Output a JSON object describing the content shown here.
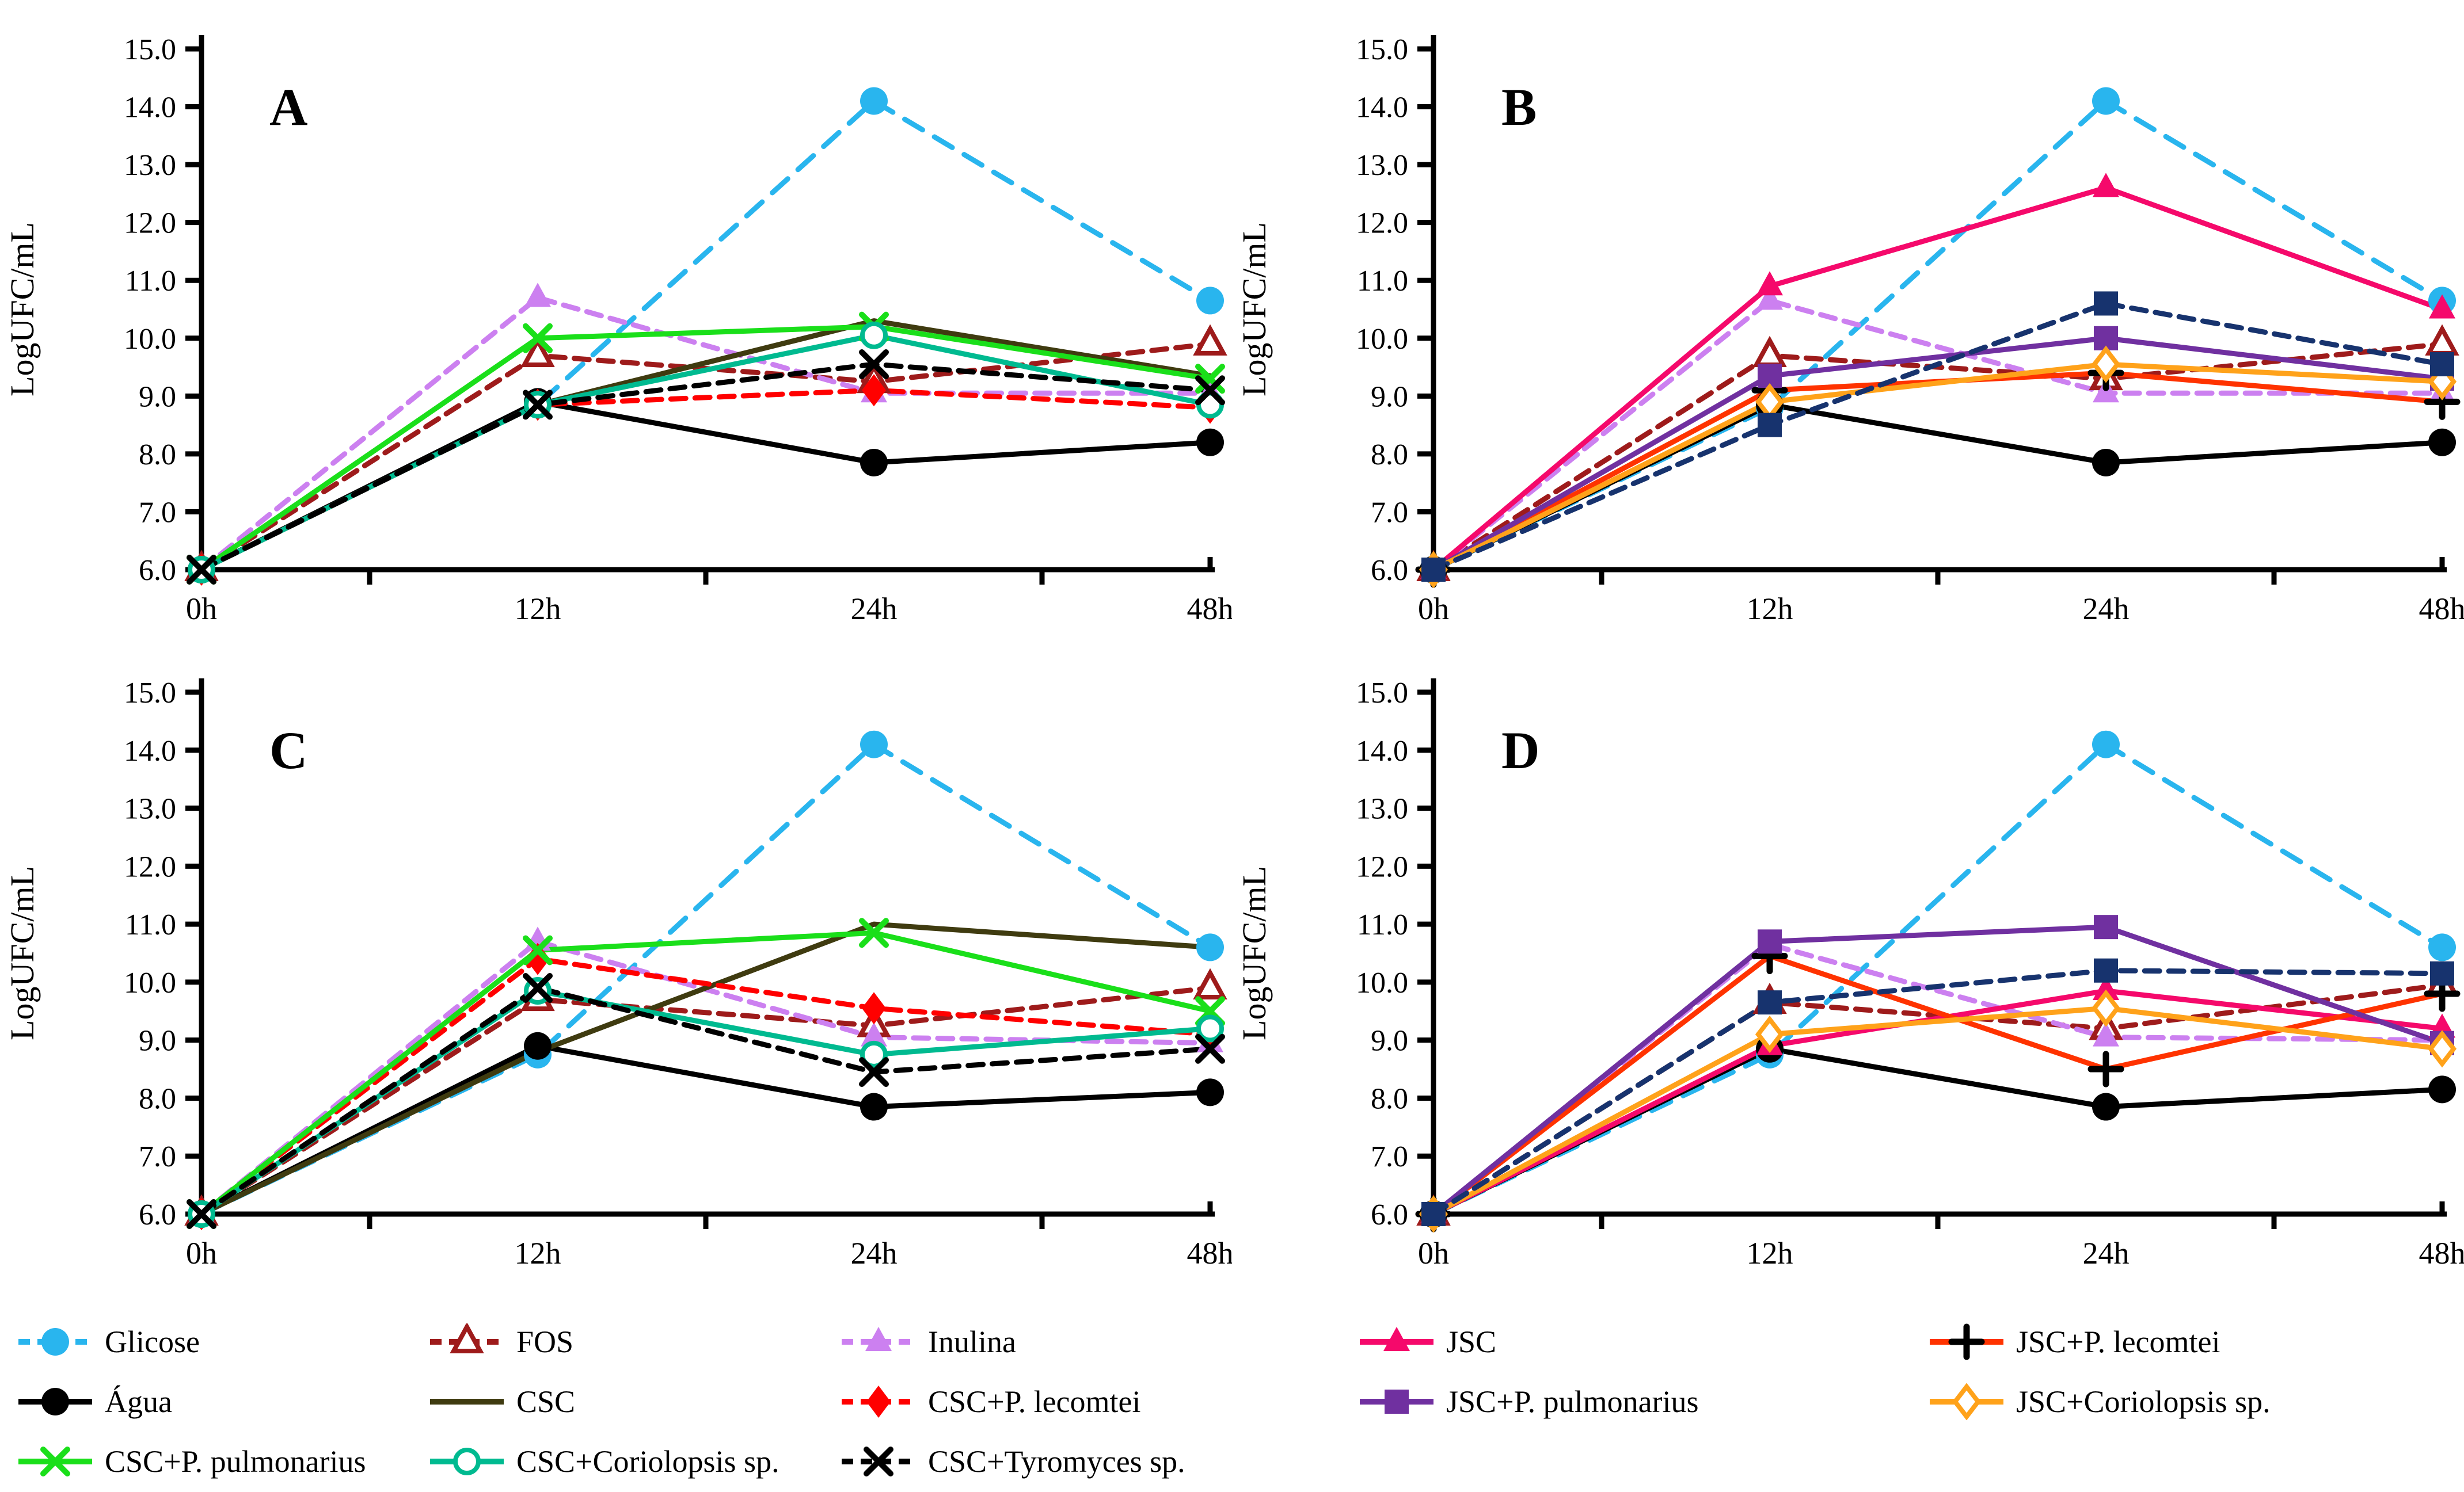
{
  "chart_data": {
    "type": "line",
    "categories": [
      "0h",
      "12h",
      "24h",
      "48h"
    ],
    "ylabel": "LogUFC/mL",
    "ylim": [
      6.0,
      15.0
    ],
    "ytick_labels": [
      "6.0",
      "7.0",
      "8.0",
      "9.0",
      "10.0",
      "11.0",
      "12.0",
      "13.0",
      "14.0",
      "15.0"
    ],
    "grid": false,
    "legend_position": "bottom",
    "styles": {
      "Glicose": {
        "color": "#29B5EE",
        "dash": true,
        "dasharray": "36 24",
        "marker": "circle_filled"
      },
      "FOS": {
        "color": "#9E1B1B",
        "dash": true,
        "dasharray": "26 16",
        "marker": "triangle_open"
      },
      "Inulina": {
        "color": "#CC80F0",
        "dash": true,
        "dasharray": "26 16",
        "marker": "triangle_filled"
      },
      "Agua": {
        "color": "#000000",
        "dash": false,
        "marker": "circle_filled"
      },
      "CSC": {
        "color": "#3F3B10",
        "dash": false,
        "marker": "none"
      },
      "CSC_lecomtei": {
        "color": "#FF0000",
        "dash": true,
        "dasharray": "26 16",
        "marker": "diamond_filled"
      },
      "CSC_pulmonarius": {
        "color": "#1ADF1A",
        "dash": false,
        "marker": "x"
      },
      "CSC_coriolopsis": {
        "color": "#00BA90",
        "dash": false,
        "marker": "circle_open"
      },
      "CSC_tyromyces": {
        "color": "#000000",
        "dash": true,
        "dasharray": "26 16",
        "marker": "x"
      },
      "JSC": {
        "color": "#F5096B",
        "dash": false,
        "marker": "triangle_filled"
      },
      "JSC_lecomtei": {
        "color": "#FF3300",
        "dash": false,
        "marker": "plus",
        "marker_color": "#000000"
      },
      "JSC_pulmonarius": {
        "color": "#7030A0",
        "dash": false,
        "marker": "square_filled"
      },
      "JSC_coriolopsis": {
        "color": "#FFA21A",
        "dash": false,
        "marker": "diamond_open"
      },
      "unlabeled_navy": {
        "color": "#17336E",
        "dash": true,
        "dasharray": "26 16",
        "marker": "square_filled"
      }
    },
    "panels": [
      {
        "label": "A",
        "series": [
          {
            "style": "Glicose",
            "name": "Glicose",
            "values": [
              6.0,
              8.85,
              14.1,
              10.65
            ]
          },
          {
            "style": "FOS",
            "name": "FOS",
            "values": [
              6.0,
              9.7,
              9.25,
              9.9
            ]
          },
          {
            "style": "Inulina",
            "name": "Inulina",
            "values": [
              6.0,
              10.7,
              9.05,
              9.05
            ]
          },
          {
            "style": "Agua",
            "name": "Água",
            "values": [
              6.0,
              8.9,
              7.85,
              8.2
            ]
          },
          {
            "style": "CSC",
            "name": "CSC",
            "values": [
              6.0,
              8.85,
              10.3,
              9.35
            ]
          },
          {
            "style": "CSC_lecomtei",
            "name": "CSC+P. lecomtei",
            "values": [
              6.0,
              8.85,
              9.1,
              8.8
            ]
          },
          {
            "style": "CSC_pulmonarius",
            "name": "CSC+P. pulmonarius",
            "values": [
              6.0,
              10.0,
              10.2,
              9.3
            ]
          },
          {
            "style": "CSC_coriolopsis",
            "name": "CSC+Coriolopsis sp.",
            "values": [
              6.0,
              8.85,
              10.05,
              8.85
            ]
          },
          {
            "style": "CSC_tyromyces",
            "name": "CSC+Tyromyces sp.",
            "values": [
              6.0,
              8.85,
              9.55,
              9.1
            ]
          }
        ]
      },
      {
        "label": "B",
        "series": [
          {
            "style": "Glicose",
            "name": "Glicose",
            "values": [
              6.0,
              8.8,
              14.1,
              10.65
            ]
          },
          {
            "style": "FOS",
            "name": "FOS",
            "values": [
              6.0,
              9.7,
              9.3,
              9.9
            ]
          },
          {
            "style": "Inulina",
            "name": "Inulina",
            "values": [
              6.0,
              10.65,
              9.05,
              9.05
            ]
          },
          {
            "style": "Agua",
            "name": "Água",
            "values": [
              6.0,
              8.85,
              7.85,
              8.2
            ]
          },
          {
            "style": "JSC",
            "name": "JSC",
            "values": [
              6.0,
              10.9,
              12.6,
              10.5
            ]
          },
          {
            "style": "JSC_lecomtei",
            "name": "JSC+P. lecomtei",
            "values": [
              6.0,
              9.1,
              9.4,
              8.9
            ]
          },
          {
            "style": "JSC_pulmonarius",
            "name": "JSC+P. pulmonarius",
            "values": [
              6.0,
              9.35,
              10.0,
              9.3
            ]
          },
          {
            "style": "JSC_coriolopsis",
            "name": "JSC+Coriolopsis sp.",
            "values": [
              6.0,
              8.9,
              9.55,
              9.25
            ]
          },
          {
            "style": "unlabeled_navy",
            "name": "",
            "values": [
              6.0,
              8.5,
              10.6,
              9.55
            ]
          }
        ]
      },
      {
        "label": "C",
        "series": [
          {
            "style": "Glicose",
            "name": "Glicose",
            "values": [
              6.0,
              8.75,
              14.1,
              10.6
            ]
          },
          {
            "style": "FOS",
            "name": "FOS",
            "values": [
              6.0,
              9.7,
              9.25,
              9.9
            ]
          },
          {
            "style": "Inulina",
            "name": "Inulina",
            "values": [
              6.0,
              10.7,
              9.05,
              8.95
            ]
          },
          {
            "style": "Agua",
            "name": "Água",
            "values": [
              6.0,
              8.9,
              7.85,
              8.1
            ]
          },
          {
            "style": "CSC",
            "name": "CSC",
            "values": [
              6.0,
              8.8,
              11.0,
              10.6
            ]
          },
          {
            "style": "CSC_lecomtei",
            "name": "CSC+P. lecomtei",
            "values": [
              6.0,
              10.4,
              9.55,
              9.1
            ]
          },
          {
            "style": "CSC_pulmonarius",
            "name": "CSC+P. pulmonarius",
            "values": [
              6.0,
              10.55,
              10.85,
              9.5
            ]
          },
          {
            "style": "CSC_coriolopsis",
            "name": "CSC+Coriolopsis sp.",
            "values": [
              6.0,
              9.85,
              8.75,
              9.2
            ]
          },
          {
            "style": "CSC_tyromyces",
            "name": "CSC+Tyromyces sp.",
            "values": [
              6.0,
              9.9,
              8.45,
              8.85
            ]
          }
        ]
      },
      {
        "label": "D",
        "series": [
          {
            "style": "Glicose",
            "name": "Glicose",
            "values": [
              6.0,
              8.75,
              14.1,
              10.6
            ]
          },
          {
            "style": "FOS",
            "name": "FOS",
            "values": [
              6.0,
              9.65,
              9.2,
              9.95
            ]
          },
          {
            "style": "Inulina",
            "name": "Inulina",
            "values": [
              6.0,
              10.65,
              9.05,
              9.0
            ]
          },
          {
            "style": "Agua",
            "name": "Água",
            "values": [
              6.0,
              8.85,
              7.85,
              8.15
            ]
          },
          {
            "style": "JSC",
            "name": "JSC",
            "values": [
              6.0,
              8.9,
              9.85,
              9.2
            ]
          },
          {
            "style": "JSC_lecomtei",
            "name": "JSC+P. lecomtei",
            "values": [
              6.0,
              10.45,
              8.5,
              9.8
            ]
          },
          {
            "style": "JSC_pulmonarius",
            "name": "JSC+P. pulmonarius",
            "values": [
              6.0,
              10.7,
              10.95,
              8.95
            ]
          },
          {
            "style": "JSC_coriolopsis",
            "name": "JSC+Coriolopsis sp.",
            "values": [
              6.0,
              9.1,
              9.55,
              8.85
            ]
          },
          {
            "style": "unlabeled_navy",
            "name": "",
            "values": [
              6.0,
              9.65,
              10.2,
              10.15
            ]
          }
        ]
      }
    ],
    "legend_left": [
      {
        "label": "Glicose",
        "style": "Glicose"
      },
      {
        "label": "FOS",
        "style": "FOS"
      },
      {
        "label": "Inulina",
        "style": "Inulina"
      },
      {
        "label": "Água",
        "style": "Agua"
      },
      {
        "label": "CSC",
        "style": "CSC"
      },
      {
        "label": "CSC+P. lecomtei",
        "style": "CSC_lecomtei"
      },
      {
        "label": "CSC+P. pulmonarius",
        "style": "CSC_pulmonarius"
      },
      {
        "label": "CSC+Coriolopsis sp.",
        "style": "CSC_coriolopsis"
      },
      {
        "label": "CSC+Tyromyces sp.",
        "style": "CSC_tyromyces"
      }
    ],
    "legend_right": [
      {
        "label": "JSC",
        "style": "JSC"
      },
      {
        "label": "JSC+P. lecomtei",
        "style": "JSC_lecomtei"
      },
      {
        "label": "JSC+P. pulmonarius",
        "style": "JSC_pulmonarius"
      },
      {
        "label": "JSC+Coriolopsis sp.",
        "style": "JSC_coriolopsis"
      }
    ]
  }
}
